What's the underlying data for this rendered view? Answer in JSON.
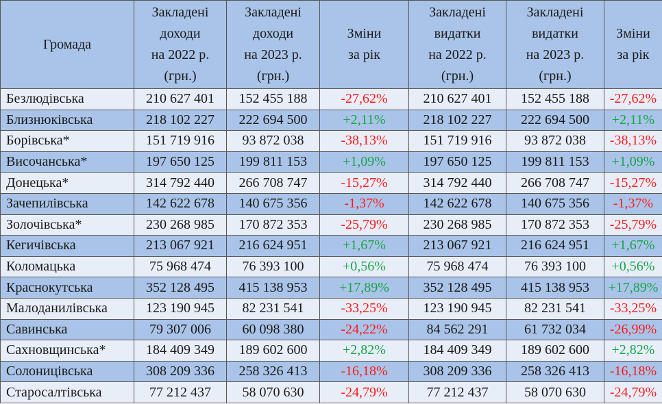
{
  "columns": [
    [
      "Громада"
    ],
    [
      "Закладені",
      "доходи",
      "на 2022 р.",
      "(грн.)"
    ],
    [
      "Закладені",
      "доходи",
      "на 2023 р.",
      "(грн.)"
    ],
    [
      "Зміни",
      "за рік"
    ],
    [
      "Закладені",
      "видатки",
      "на 2022 р.",
      "(грн.)"
    ],
    [
      "Закладені",
      "видатки",
      "на 2023 р.",
      "(грн.)"
    ],
    [
      "Зміни",
      "за рік"
    ]
  ],
  "rows": [
    {
      "name": "Безлюдівська",
      "inc2022": "210 627 401",
      "inc2023": "152 455 188",
      "inc_change": "-27,62%",
      "exp2022": "210 627 401",
      "exp2023": "152 455 188",
      "exp_change": "-27,62%"
    },
    {
      "name": "Близнюківська",
      "inc2022": "218 102 227",
      "inc2023": "222 694 500",
      "inc_change": "+2,11%",
      "exp2022": "218 102 227",
      "exp2023": "222 694 500",
      "exp_change": "+2,11%"
    },
    {
      "name": "Борівська*",
      "inc2022": "151 719 916",
      "inc2023": "93 872 038",
      "inc_change": "-38,13%",
      "exp2022": "151 719 916",
      "exp2023": "93 872 038",
      "exp_change": "-38,13%"
    },
    {
      "name": "Височанська*",
      "inc2022": "197 650 125",
      "inc2023": "199 811 153",
      "inc_change": "+1,09%",
      "exp2022": "197 650 125",
      "exp2023": "199 811 153",
      "exp_change": "+1,09%"
    },
    {
      "name": "Донецька*",
      "inc2022": "314 792 440",
      "inc2023": "266 708 747",
      "inc_change": "-15,27%",
      "exp2022": "314 792 440",
      "exp2023": "266 708 747",
      "exp_change": "-15,27%"
    },
    {
      "name": "Зачепилівська",
      "inc2022": "142 622 678",
      "inc2023": "140 675 356",
      "inc_change": "-1,37%",
      "exp2022": "142 622 678",
      "exp2023": "140 675 356",
      "exp_change": "-1,37%"
    },
    {
      "name": "Золочівська*",
      "inc2022": "230 268 985",
      "inc2023": "170 872 353",
      "inc_change": "-25,79%",
      "exp2022": "230 268 985",
      "exp2023": "170 872 353",
      "exp_change": "-25,79%"
    },
    {
      "name": "Кегичівська",
      "inc2022": "213 067 921",
      "inc2023": "216 624 951",
      "inc_change": "+1,67%",
      "exp2022": "213 067 921",
      "exp2023": "216 624 951",
      "exp_change": "+1,67%"
    },
    {
      "name": "Коломацька",
      "inc2022": "75 968 474",
      "inc2023": "76 393 100",
      "inc_change": "+0,56%",
      "exp2022": "75 968 474",
      "exp2023": "76 393 100",
      "exp_change": "+0,56%"
    },
    {
      "name": "Краснокутська",
      "inc2022": "352 128 495",
      "inc2023": "415 138 953",
      "inc_change": "+17,89%",
      "exp2022": "352 128 495",
      "exp2023": "415 138 953",
      "exp_change": "+17,89%"
    },
    {
      "name": "Малоданилівська",
      "inc2022": "123 190 945",
      "inc2023": "82 231 541",
      "inc_change": "-33,25%",
      "exp2022": "123 190 945",
      "exp2023": "82 231 541",
      "exp_change": "-33,25%"
    },
    {
      "name": "Савинська",
      "inc2022": "79 307 006",
      "inc2023": "60 098 380",
      "inc_change": "-24,22%",
      "exp2022": "84 562 291",
      "exp2023": "61 732 034",
      "exp_change": "-26,99%"
    },
    {
      "name": "Сахновщинська*",
      "inc2022": "184 409 349",
      "inc2023": "189 602 600",
      "inc_change": "+2,82%",
      "exp2022": "184 409 349",
      "exp2023": "189 602 600",
      "exp_change": "+2,82%"
    },
    {
      "name": "Солоницівська",
      "inc2022": "308 209 336",
      "inc2023": "258 326 413",
      "inc_change": "-16,18%",
      "exp2022": "308 209 336",
      "exp2023": "258 326 413",
      "exp_change": "-16,18%"
    },
    {
      "name": "Старосалтівська",
      "inc2022": "77 212 437",
      "inc2023": "58 070 630",
      "inc_change": "-24,79%",
      "exp2022": "77 212 437",
      "exp2023": "58 070 630",
      "exp_change": "-24,79%"
    }
  ],
  "colors": {
    "header_bg": "#a9c4e8",
    "row_light": "#e8eef8",
    "row_dark": "#a9c4e8",
    "negative": "#ff1a1a",
    "positive": "#1aa34a",
    "text": "#1a1a1a",
    "border": "#555555"
  }
}
